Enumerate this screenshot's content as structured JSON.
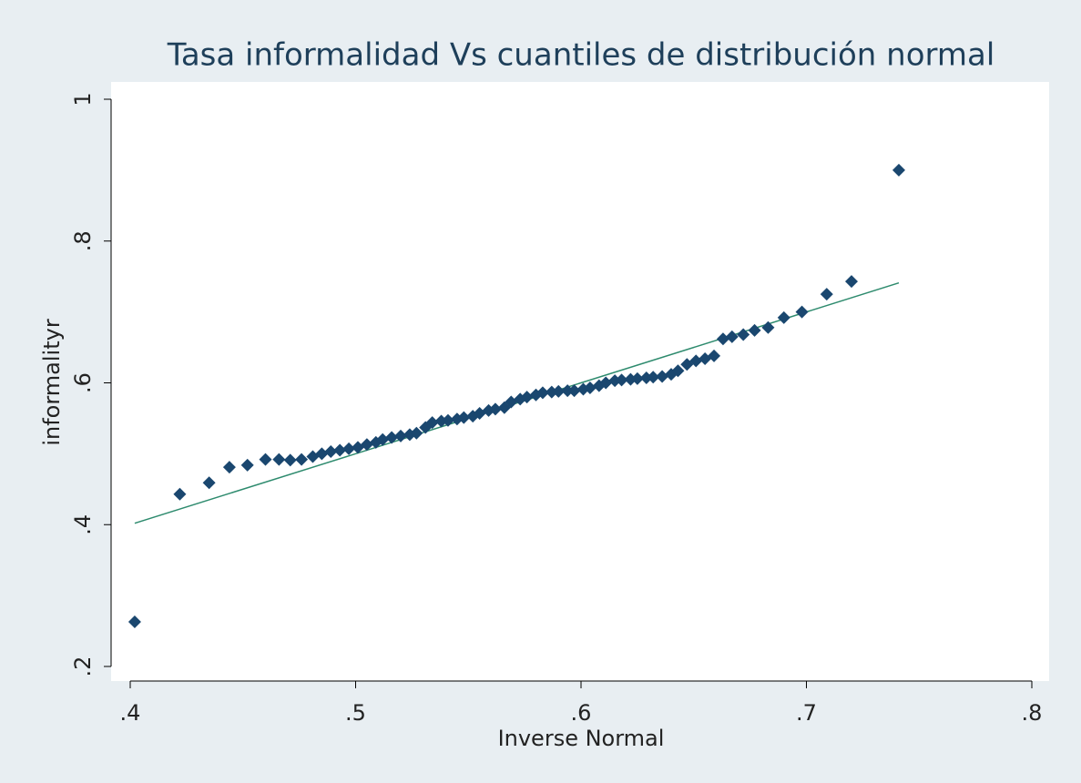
{
  "chart_data": {
    "type": "scatter",
    "title": "Tasa informalidad Vs cuantiles de distribución normal",
    "x_label": "Inverse Normal",
    "y_label": "informalityr",
    "xlim": [
      0.4,
      0.8
    ],
    "ylim": [
      0.2,
      1
    ],
    "xticks": [
      {
        "value": 0.4,
        "label": ".4"
      },
      {
        "value": 0.5,
        "label": ".5"
      },
      {
        "value": 0.6,
        "label": ".6"
      },
      {
        "value": 0.7,
        "label": ".7"
      },
      {
        "value": 0.8,
        "label": ".8"
      }
    ],
    "yticks": [
      {
        "value": 0.2,
        "label": ".2"
      },
      {
        "value": 0.4,
        "label": ".4"
      },
      {
        "value": 0.6,
        "label": ".6"
      },
      {
        "value": 0.8,
        "label": ".8"
      },
      {
        "value": 1,
        "label": "1"
      }
    ],
    "series": [
      {
        "color": "#1a476f",
        "x": [
          0.402,
          0.422,
          0.435,
          0.444,
          0.452,
          0.46,
          0.466,
          0.471,
          0.476,
          0.481,
          0.485,
          0.489,
          0.493,
          0.497,
          0.501,
          0.505,
          0.509,
          0.512,
          0.516,
          0.52,
          0.524,
          0.527,
          0.531,
          0.534,
          0.538,
          0.541,
          0.545,
          0.548,
          0.552,
          0.555,
          0.559,
          0.562,
          0.566,
          0.569,
          0.573,
          0.576,
          0.58,
          0.583,
          0.587,
          0.59,
          0.594,
          0.597,
          0.601,
          0.604,
          0.608,
          0.611,
          0.615,
          0.618,
          0.622,
          0.625,
          0.629,
          0.632,
          0.636,
          0.64,
          0.643,
          0.647,
          0.651,
          0.655,
          0.659,
          0.663,
          0.667,
          0.672,
          0.677,
          0.683,
          0.69,
          0.698,
          0.709,
          0.72,
          0.741
        ],
        "values": [
          0.263,
          0.443,
          0.459,
          0.481,
          0.484,
          0.492,
          0.492,
          0.491,
          0.492,
          0.496,
          0.5,
          0.503,
          0.505,
          0.507,
          0.509,
          0.513,
          0.516,
          0.52,
          0.523,
          0.525,
          0.527,
          0.529,
          0.537,
          0.544,
          0.546,
          0.547,
          0.549,
          0.551,
          0.553,
          0.557,
          0.561,
          0.563,
          0.565,
          0.573,
          0.577,
          0.58,
          0.583,
          0.586,
          0.587,
          0.588,
          0.589,
          0.589,
          0.591,
          0.593,
          0.596,
          0.6,
          0.603,
          0.604,
          0.605,
          0.606,
          0.607,
          0.608,
          0.609,
          0.612,
          0.617,
          0.626,
          0.631,
          0.634,
          0.638,
          0.662,
          0.665,
          0.668,
          0.674,
          0.678,
          0.692,
          0.7,
          0.725,
          0.743,
          0.9
        ]
      }
    ],
    "reference_line": {
      "color": "#2e8b6e",
      "x": [
        0.402,
        0.741
      ],
      "values": [
        0.402,
        0.741
      ]
    }
  }
}
